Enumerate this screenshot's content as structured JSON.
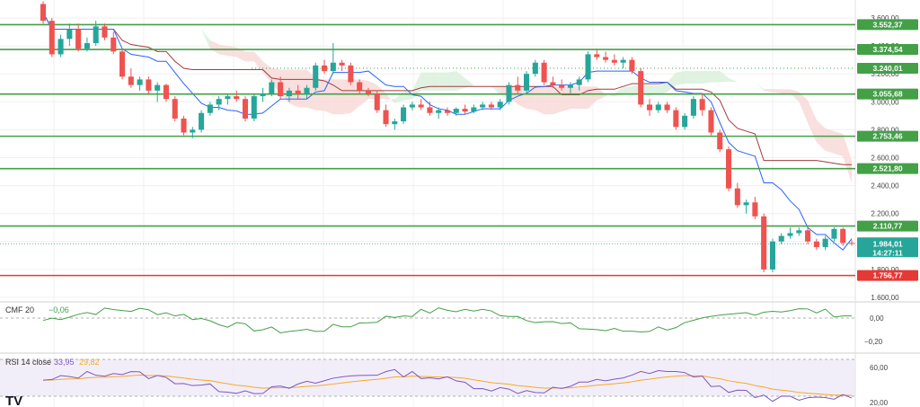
{
  "chart_data": {
    "type": "candlestick",
    "price_axis": {
      "min": 1600,
      "max": 3650,
      "ticks": [
        "3.600,00",
        "3.400,00",
        "3.200,00",
        "3.000,00",
        "2.800,00",
        "2.600,00",
        "2.400,00",
        "2.200,00",
        "2.000,00",
        "1.800,00",
        "1.600,00"
      ],
      "tick_values": [
        3600,
        3400,
        3200,
        3000,
        2800,
        2600,
        2400,
        2200,
        2000,
        1800,
        1600
      ]
    },
    "levels": [
      {
        "label": "3.552,37",
        "value": 3552.37,
        "color": "#43a047",
        "style": "solid"
      },
      {
        "label": "3.374,54",
        "value": 3374.54,
        "color": "#43a047",
        "style": "solid"
      },
      {
        "label": "3.240,01",
        "value": 3240.01,
        "color": "#43a047",
        "style": "dotted"
      },
      {
        "label": "3.055,68",
        "value": 3055.68,
        "color": "#43a047",
        "style": "solid"
      },
      {
        "label": "2.753,46",
        "value": 2753.46,
        "color": "#43a047",
        "style": "solid"
      },
      {
        "label": "2.521,80",
        "value": 2521.8,
        "color": "#43a047",
        "style": "solid"
      },
      {
        "label": "2.110,77",
        "value": 2110.77,
        "color": "#43a047",
        "style": "solid"
      },
      {
        "label": "1.756,77",
        "value": 1756.77,
        "color": "#e53935",
        "style": "solid"
      }
    ],
    "current_price": {
      "label": "1.984,01",
      "countdown": "14:27:11",
      "value": 1984.01,
      "color": "#26a69a"
    },
    "candles": [
      [
        3700,
        3720,
        3560,
        3580
      ],
      [
        3580,
        3600,
        3320,
        3340
      ],
      [
        3340,
        3480,
        3320,
        3450
      ],
      [
        3450,
        3560,
        3400,
        3520
      ],
      [
        3520,
        3560,
        3360,
        3380
      ],
      [
        3380,
        3460,
        3360,
        3420
      ],
      [
        3420,
        3580,
        3400,
        3540
      ],
      [
        3540,
        3560,
        3440,
        3460
      ],
      [
        3460,
        3500,
        3340,
        3360
      ],
      [
        3360,
        3380,
        3160,
        3180
      ],
      [
        3180,
        3240,
        3100,
        3120
      ],
      [
        3120,
        3180,
        3080,
        3160
      ],
      [
        3160,
        3180,
        3060,
        3080
      ],
      [
        3080,
        3140,
        3000,
        3120
      ],
      [
        3120,
        3130,
        3000,
        3020
      ],
      [
        3020,
        3040,
        2860,
        2880
      ],
      [
        2880,
        2900,
        2760,
        2780
      ],
      [
        2780,
        2820,
        2740,
        2800
      ],
      [
        2800,
        2940,
        2780,
        2920
      ],
      [
        2920,
        3000,
        2900,
        2980
      ],
      [
        2980,
        3040,
        2940,
        3020
      ],
      [
        3020,
        3060,
        2980,
        3040
      ],
      [
        3040,
        3080,
        3000,
        3020
      ],
      [
        3020,
        3040,
        2860,
        2880
      ],
      [
        2880,
        3060,
        2860,
        3040
      ],
      [
        3040,
        3100,
        3000,
        3060
      ],
      [
        3060,
        3160,
        3040,
        3140
      ],
      [
        3140,
        3180,
        3020,
        3040
      ],
      [
        3040,
        3100,
        3000,
        3080
      ],
      [
        3080,
        3120,
        3020,
        3060
      ],
      [
        3060,
        3120,
        3020,
        3100
      ],
      [
        3100,
        3280,
        3080,
        3260
      ],
      [
        3260,
        3300,
        3200,
        3220
      ],
      [
        3220,
        3420,
        3200,
        3280
      ],
      [
        3280,
        3300,
        3220,
        3260
      ],
      [
        3260,
        3280,
        3120,
        3140
      ],
      [
        3140,
        3160,
        3060,
        3080
      ],
      [
        3080,
        3100,
        3040,
        3060
      ],
      [
        3060,
        3080,
        2920,
        2940
      ],
      [
        2940,
        2980,
        2820,
        2840
      ],
      [
        2840,
        2880,
        2800,
        2860
      ],
      [
        2860,
        2980,
        2840,
        2960
      ],
      [
        2960,
        3000,
        2940,
        2980
      ],
      [
        2980,
        3020,
        2940,
        2960
      ],
      [
        2960,
        3000,
        2900,
        2920
      ],
      [
        2920,
        2960,
        2880,
        2940
      ],
      [
        2940,
        2960,
        2900,
        2920
      ],
      [
        2920,
        2960,
        2900,
        2950
      ],
      [
        2950,
        2980,
        2910,
        2930
      ],
      [
        2930,
        2980,
        2920,
        2960
      ],
      [
        2960,
        3000,
        2940,
        2980
      ],
      [
        2980,
        3000,
        2940,
        2960
      ],
      [
        2960,
        3020,
        2940,
        3000
      ],
      [
        3000,
        3140,
        2980,
        3120
      ],
      [
        3120,
        3180,
        3060,
        3080
      ],
      [
        3080,
        3220,
        3060,
        3200
      ],
      [
        3200,
        3300,
        3180,
        3280
      ],
      [
        3280,
        3300,
        3120,
        3140
      ],
      [
        3140,
        3180,
        3100,
        3120
      ],
      [
        3120,
        3160,
        3080,
        3100
      ],
      [
        3100,
        3140,
        3060,
        3120
      ],
      [
        3120,
        3180,
        3080,
        3160
      ],
      [
        3160,
        3360,
        3140,
        3340
      ],
      [
        3340,
        3380,
        3300,
        3320
      ],
      [
        3320,
        3360,
        3280,
        3300
      ],
      [
        3300,
        3340,
        3260,
        3280
      ],
      [
        3280,
        3320,
        3240,
        3300
      ],
      [
        3300,
        3320,
        3200,
        3220
      ],
      [
        3220,
        3240,
        2960,
        2980
      ],
      [
        2980,
        3020,
        2900,
        2940
      ],
      [
        2940,
        3000,
        2920,
        2980
      ],
      [
        2980,
        3000,
        2920,
        2940
      ],
      [
        2940,
        2960,
        2800,
        2820
      ],
      [
        2820,
        2920,
        2800,
        2900
      ],
      [
        2900,
        3040,
        2880,
        3020
      ],
      [
        3020,
        3060,
        2900,
        2940
      ],
      [
        2940,
        2960,
        2760,
        2780
      ],
      [
        2780,
        2800,
        2640,
        2660
      ],
      [
        2660,
        2680,
        2360,
        2380
      ],
      [
        2380,
        2420,
        2240,
        2260
      ],
      [
        2260,
        2300,
        2200,
        2280
      ],
      [
        2280,
        2320,
        2160,
        2180
      ],
      [
        2180,
        2200,
        1780,
        1800
      ],
      [
        1800,
        2020,
        1780,
        2000
      ],
      [
        2000,
        2060,
        1980,
        2040
      ],
      [
        2040,
        2100,
        2020,
        2060
      ],
      [
        2060,
        2100,
        2040,
        2080
      ],
      [
        2080,
        2100,
        1980,
        2000
      ],
      [
        2000,
        2020,
        1940,
        1960
      ],
      [
        1960,
        2040,
        1940,
        2020
      ],
      [
        2020,
        2100,
        2000,
        2090
      ],
      [
        2090,
        2100,
        1970,
        1990
      ],
      [
        1990,
        2010,
        1970,
        1984
      ]
    ],
    "indicators": [
      {
        "name": "CMF 20",
        "value": "−0,06",
        "color": "#43a047",
        "ticks": [
          "0,00",
          "−0,20"
        ]
      },
      {
        "name": "RSI 14 close",
        "value": "33,95",
        "value2": "29,82",
        "color": "#7e57c2",
        "color2": "#f9a825",
        "ticks": [
          "60,00",
          "20,00"
        ]
      }
    ],
    "colors": {
      "up": "#26a69a",
      "down": "#ef5350",
      "grid": "#f0f0f0",
      "baseline": "#2962ff",
      "cloud_bear": "#f8d7d5",
      "cloud_bull": "#d8efd9"
    }
  },
  "brand": "TV"
}
